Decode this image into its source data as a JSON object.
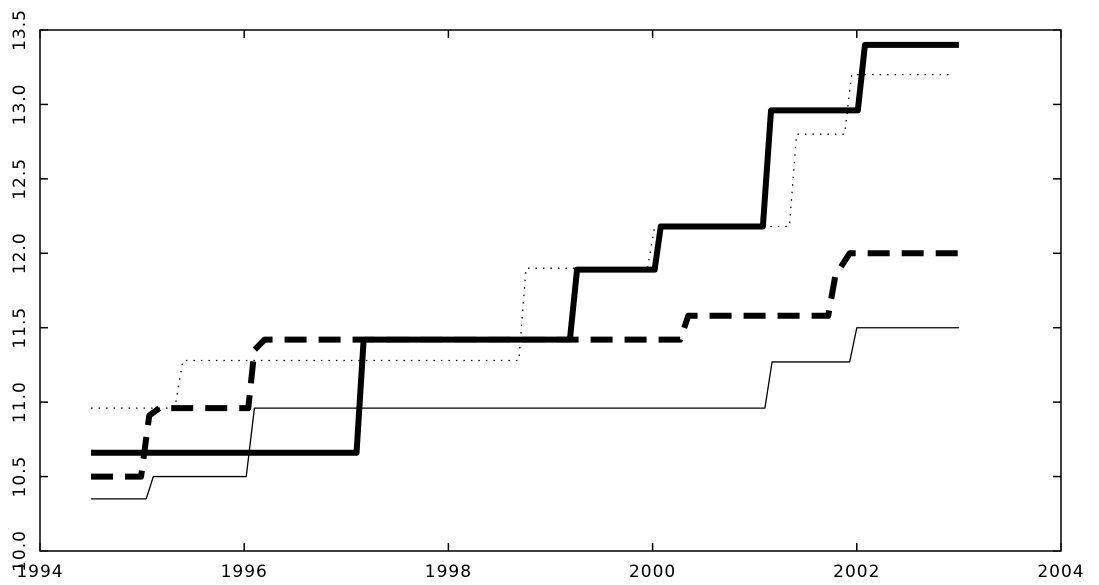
{
  "chart_data": {
    "type": "line",
    "xlim": [
      1994,
      2004
    ],
    "xticks": [
      1994,
      1996,
      1998,
      2000,
      2002,
      2004
    ],
    "ylim": [
      10,
      13.5
    ],
    "yticks": [
      {
        "value": 10,
        "label": "10.0"
      },
      10.5,
      {
        "value": 11,
        "label": "11.0"
      },
      11.5,
      {
        "value": 12,
        "label": "12.0"
      },
      12.5,
      {
        "value": 13,
        "label": "13.0"
      },
      13.5
    ],
    "series": [
      {
        "color": "#000000",
        "style": "thick-solid",
        "x": [
          1994.5,
          1997.1,
          1997.17,
          1999.19,
          1999.26,
          2000.02,
          2000.08,
          2001.08,
          2001.16,
          2002.01,
          2002.08,
          2003.0
        ],
        "values": [
          10.66,
          10.66,
          11.42,
          11.42,
          11.89,
          11.89,
          12.18,
          12.18,
          12.96,
          12.96,
          13.4,
          13.4
        ]
      },
      {
        "color": "#000000",
        "style": "thick-dashed",
        "x": [
          1994.5,
          1994.99,
          1995.07,
          1995.17,
          1996.04,
          1996.1,
          1996.2,
          2000.27,
          2000.35,
          2001.72,
          2001.79,
          2001.93,
          2003.0
        ],
        "values": [
          10.5,
          10.5,
          10.91,
          10.96,
          10.96,
          11.35,
          11.42,
          11.42,
          11.58,
          11.58,
          11.85,
          12.0,
          12.0
        ]
      },
      {
        "color": "#000000",
        "style": "thin-solid",
        "x": [
          1994.5,
          1995.04,
          1995.11,
          1996.02,
          1996.1,
          2001.1,
          2001.17,
          2001.93,
          2002.0,
          2003.0
        ],
        "values": [
          10.35,
          10.35,
          10.5,
          10.5,
          10.96,
          10.96,
          11.27,
          11.27,
          11.5,
          11.5
        ]
      },
      {
        "color": "#000000",
        "style": "dotted",
        "x": [
          1994.5,
          1995.32,
          1995.4,
          1998.69,
          1998.76,
          1999.95,
          2000.02,
          2001.34,
          2001.41,
          2001.88,
          2001.95,
          2002.92
        ],
        "values": [
          10.96,
          10.96,
          11.28,
          11.28,
          11.9,
          11.9,
          12.18,
          12.18,
          12.8,
          12.8,
          13.2,
          13.2
        ]
      }
    ]
  }
}
